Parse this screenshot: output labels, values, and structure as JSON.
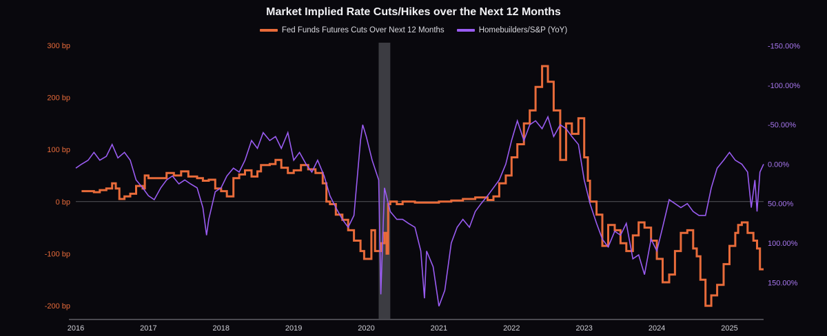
{
  "chart_data": {
    "type": "line",
    "title": "Market Implied Rate Cuts/Hikes over the Next 12 Months",
    "x_ticks": [
      "2016",
      "2017",
      "2018",
      "2019",
      "2020",
      "2021",
      "2022",
      "2023",
      "2024",
      "2025"
    ],
    "y_left": {
      "ticks": [
        300,
        200,
        100,
        0,
        -100,
        -200
      ],
      "tick_labels": [
        "300 bp",
        "200 bp",
        "100 bp",
        "0 bp",
        "-100 bp",
        "-200 bp"
      ],
      "range": [
        -225,
        305
      ]
    },
    "y_right": {
      "inverted": true,
      "ticks": [
        -150,
        -100,
        -50,
        0,
        50,
        100,
        150
      ],
      "tick_labels": [
        "-150.00%",
        "-100.00%",
        "-50.00%",
        "0.00%",
        "50.00%",
        "100.00%",
        "150.00%"
      ],
      "range": [
        -154,
        196
      ]
    },
    "shaded_period": {
      "start": 2020.17,
      "end": 2020.33
    },
    "series": [
      {
        "name": "Fed Funds Futures Cuts Over Next 12 Months",
        "axis": "left",
        "color": "#e86b3a",
        "step": true,
        "points": [
          [
            2016.08,
            20
          ],
          [
            2016.25,
            18
          ],
          [
            2016.33,
            22
          ],
          [
            2016.42,
            25
          ],
          [
            2016.5,
            35
          ],
          [
            2016.55,
            25
          ],
          [
            2016.6,
            5
          ],
          [
            2016.67,
            10
          ],
          [
            2016.75,
            15
          ],
          [
            2016.83,
            30
          ],
          [
            2016.92,
            25
          ],
          [
            2016.95,
            50
          ],
          [
            2017.0,
            45
          ],
          [
            2017.08,
            45
          ],
          [
            2017.25,
            55
          ],
          [
            2017.35,
            50
          ],
          [
            2017.45,
            58
          ],
          [
            2017.55,
            48
          ],
          [
            2017.67,
            45
          ],
          [
            2017.75,
            40
          ],
          [
            2017.83,
            42
          ],
          [
            2017.92,
            25
          ],
          [
            2018.0,
            20
          ],
          [
            2018.08,
            10
          ],
          [
            2018.17,
            45
          ],
          [
            2018.25,
            52
          ],
          [
            2018.33,
            60
          ],
          [
            2018.42,
            48
          ],
          [
            2018.5,
            58
          ],
          [
            2018.55,
            70
          ],
          [
            2018.67,
            72
          ],
          [
            2018.75,
            80
          ],
          [
            2018.83,
            65
          ],
          [
            2018.92,
            55
          ],
          [
            2019.0,
            60
          ],
          [
            2019.1,
            70
          ],
          [
            2019.2,
            62
          ],
          [
            2019.3,
            55
          ],
          [
            2019.4,
            35
          ],
          [
            2019.45,
            0
          ],
          [
            2019.5,
            -5
          ],
          [
            2019.58,
            -25
          ],
          [
            2019.67,
            -35
          ],
          [
            2019.75,
            -55
          ],
          [
            2019.83,
            -75
          ],
          [
            2019.92,
            -95
          ],
          [
            2019.97,
            -110
          ],
          [
            2020.07,
            -55
          ],
          [
            2020.12,
            -95
          ],
          [
            2020.2,
            -80
          ],
          [
            2020.25,
            -60
          ],
          [
            2020.28,
            -100
          ],
          [
            2020.3,
            -5
          ],
          [
            2020.33,
            0
          ],
          [
            2020.42,
            -5
          ],
          [
            2020.5,
            0
          ],
          [
            2020.67,
            -2
          ],
          [
            2021.0,
            0
          ],
          [
            2021.17,
            2
          ],
          [
            2021.33,
            5
          ],
          [
            2021.5,
            8
          ],
          [
            2021.67,
            3
          ],
          [
            2021.75,
            10
          ],
          [
            2021.83,
            35
          ],
          [
            2021.92,
            50
          ],
          [
            2022.0,
            85
          ],
          [
            2022.08,
            110
          ],
          [
            2022.17,
            150
          ],
          [
            2022.25,
            175
          ],
          [
            2022.33,
            220
          ],
          [
            2022.42,
            260
          ],
          [
            2022.5,
            230
          ],
          [
            2022.58,
            175
          ],
          [
            2022.67,
            80
          ],
          [
            2022.75,
            150
          ],
          [
            2022.83,
            130
          ],
          [
            2022.92,
            160
          ],
          [
            2023.0,
            85
          ],
          [
            2023.05,
            40
          ],
          [
            2023.08,
            0
          ],
          [
            2023.17,
            -25
          ],
          [
            2023.25,
            -85
          ],
          [
            2023.33,
            -45
          ],
          [
            2023.42,
            -55
          ],
          [
            2023.5,
            -80
          ],
          [
            2023.58,
            -95
          ],
          [
            2023.67,
            -65
          ],
          [
            2023.75,
            -40
          ],
          [
            2023.83,
            -50
          ],
          [
            2023.92,
            -75
          ],
          [
            2024.0,
            -110
          ],
          [
            2024.08,
            -155
          ],
          [
            2024.17,
            -140
          ],
          [
            2024.25,
            -95
          ],
          [
            2024.33,
            -60
          ],
          [
            2024.42,
            -55
          ],
          [
            2024.5,
            -90
          ],
          [
            2024.55,
            -105
          ],
          [
            2024.6,
            -150
          ],
          [
            2024.67,
            -200
          ],
          [
            2024.75,
            -180
          ],
          [
            2024.83,
            -160
          ],
          [
            2024.92,
            -120
          ],
          [
            2025.0,
            -85
          ],
          [
            2025.08,
            -60
          ],
          [
            2025.12,
            -45
          ],
          [
            2025.17,
            -40
          ],
          [
            2025.25,
            -60
          ],
          [
            2025.33,
            -75
          ],
          [
            2025.38,
            -90
          ],
          [
            2025.42,
            -130
          ],
          [
            2025.47,
            -130
          ]
        ]
      },
      {
        "name": "Homebuilders/S&P (YoY)",
        "axis": "right",
        "color": "#9a5cf2",
        "step": false,
        "points": [
          [
            2016.0,
            5
          ],
          [
            2016.08,
            0
          ],
          [
            2016.17,
            -5
          ],
          [
            2016.25,
            -15
          ],
          [
            2016.33,
            -5
          ],
          [
            2016.42,
            -10
          ],
          [
            2016.5,
            -25
          ],
          [
            2016.58,
            -8
          ],
          [
            2016.67,
            -15
          ],
          [
            2016.75,
            -5
          ],
          [
            2016.83,
            20
          ],
          [
            2016.92,
            30
          ],
          [
            2017.0,
            40
          ],
          [
            2017.08,
            45
          ],
          [
            2017.17,
            30
          ],
          [
            2017.25,
            20
          ],
          [
            2017.33,
            15
          ],
          [
            2017.42,
            25
          ],
          [
            2017.5,
            20
          ],
          [
            2017.58,
            25
          ],
          [
            2017.67,
            30
          ],
          [
            2017.75,
            55
          ],
          [
            2017.8,
            90
          ],
          [
            2017.83,
            70
          ],
          [
            2017.92,
            35
          ],
          [
            2018.0,
            30
          ],
          [
            2018.08,
            15
          ],
          [
            2018.17,
            5
          ],
          [
            2018.25,
            10
          ],
          [
            2018.33,
            -5
          ],
          [
            2018.42,
            -30
          ],
          [
            2018.5,
            -20
          ],
          [
            2018.58,
            -40
          ],
          [
            2018.67,
            -30
          ],
          [
            2018.75,
            -35
          ],
          [
            2018.83,
            -20
          ],
          [
            2018.92,
            -40
          ],
          [
            2019.0,
            -5
          ],
          [
            2019.08,
            -15
          ],
          [
            2019.17,
            0
          ],
          [
            2019.25,
            10
          ],
          [
            2019.33,
            -5
          ],
          [
            2019.42,
            15
          ],
          [
            2019.5,
            40
          ],
          [
            2019.58,
            55
          ],
          [
            2019.67,
            70
          ],
          [
            2019.75,
            80
          ],
          [
            2019.83,
            65
          ],
          [
            2019.92,
            -30
          ],
          [
            2019.95,
            -50
          ],
          [
            2020.0,
            -35
          ],
          [
            2020.08,
            -5
          ],
          [
            2020.17,
            20
          ],
          [
            2020.2,
            165
          ],
          [
            2020.25,
            30
          ],
          [
            2020.33,
            60
          ],
          [
            2020.42,
            70
          ],
          [
            2020.5,
            70
          ],
          [
            2020.58,
            75
          ],
          [
            2020.67,
            80
          ],
          [
            2020.75,
            110
          ],
          [
            2020.8,
            170
          ],
          [
            2020.83,
            110
          ],
          [
            2020.92,
            130
          ],
          [
            2021.0,
            180
          ],
          [
            2021.08,
            160
          ],
          [
            2021.17,
            100
          ],
          [
            2021.25,
            80
          ],
          [
            2021.33,
            70
          ],
          [
            2021.42,
            80
          ],
          [
            2021.5,
            60
          ],
          [
            2021.58,
            50
          ],
          [
            2021.67,
            40
          ],
          [
            2021.75,
            30
          ],
          [
            2021.83,
            20
          ],
          [
            2021.92,
            0
          ],
          [
            2022.0,
            -30
          ],
          [
            2022.08,
            -55
          ],
          [
            2022.17,
            -30
          ],
          [
            2022.25,
            -50
          ],
          [
            2022.33,
            -55
          ],
          [
            2022.42,
            -45
          ],
          [
            2022.5,
            -60
          ],
          [
            2022.58,
            -35
          ],
          [
            2022.67,
            -50
          ],
          [
            2022.75,
            -45
          ],
          [
            2022.83,
            -35
          ],
          [
            2022.92,
            -25
          ],
          [
            2023.0,
            20
          ],
          [
            2023.08,
            50
          ],
          [
            2023.17,
            75
          ],
          [
            2023.25,
            95
          ],
          [
            2023.33,
            105
          ],
          [
            2023.42,
            85
          ],
          [
            2023.5,
            90
          ],
          [
            2023.58,
            75
          ],
          [
            2023.67,
            120
          ],
          [
            2023.75,
            115
          ],
          [
            2023.83,
            140
          ],
          [
            2023.92,
            95
          ],
          [
            2024.0,
            110
          ],
          [
            2024.08,
            80
          ],
          [
            2024.17,
            45
          ],
          [
            2024.25,
            50
          ],
          [
            2024.33,
            55
          ],
          [
            2024.42,
            50
          ],
          [
            2024.5,
            60
          ],
          [
            2024.58,
            65
          ],
          [
            2024.67,
            65
          ],
          [
            2024.75,
            30
          ],
          [
            2024.83,
            5
          ],
          [
            2024.92,
            -5
          ],
          [
            2025.0,
            -15
          ],
          [
            2025.08,
            -5
          ],
          [
            2025.17,
            0
          ],
          [
            2025.25,
            10
          ],
          [
            2025.3,
            55
          ],
          [
            2025.35,
            20
          ],
          [
            2025.38,
            60
          ],
          [
            2025.42,
            10
          ],
          [
            2025.47,
            0
          ]
        ]
      }
    ]
  }
}
